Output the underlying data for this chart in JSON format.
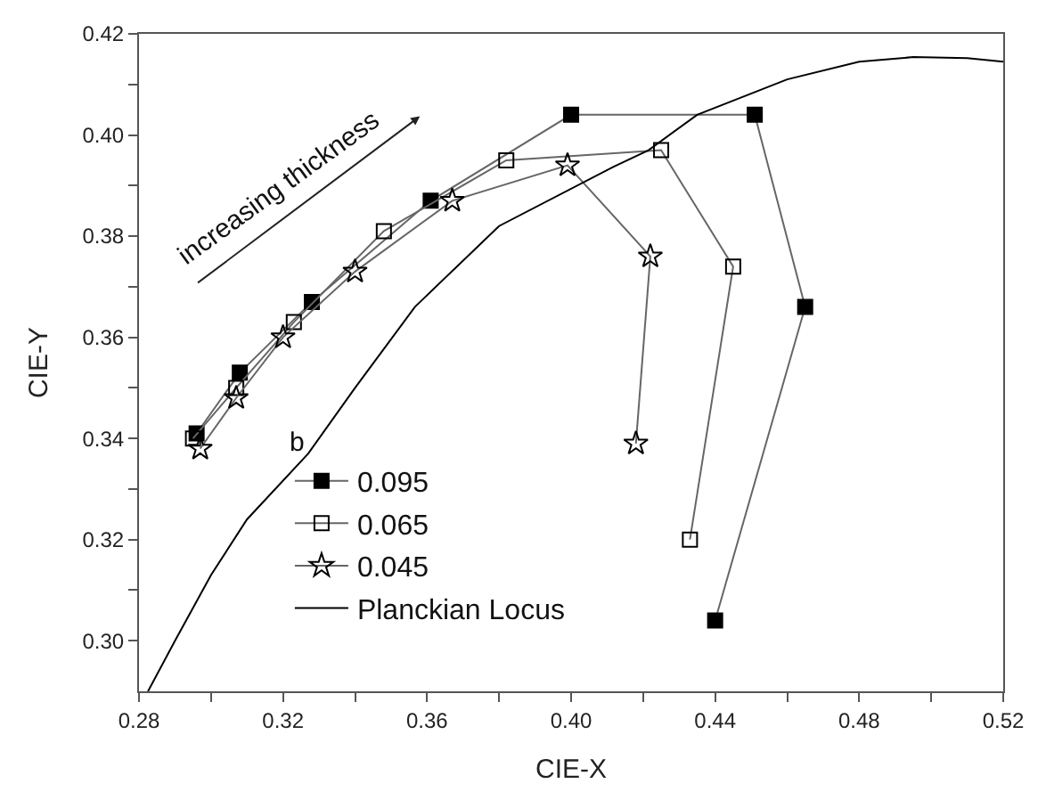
{
  "chart_data": {
    "type": "line",
    "xlabel": "CIE-X",
    "ylabel": "CIE-Y",
    "legend_title": "b",
    "legend": "bottom left",
    "xlim": [
      0.28,
      0.52
    ],
    "ylim": [
      0.29,
      0.42
    ],
    "xticks": [
      0.28,
      {
        "value": 0.3,
        "label": null
      },
      0.32,
      {
        "value": 0.34,
        "label": null
      },
      0.36,
      {
        "value": 0.38,
        "label": null
      },
      {
        "value": 0.4,
        "label": "0.40"
      },
      {
        "value": 0.42,
        "label": null
      },
      0.44,
      {
        "value": 0.46,
        "label": null
      },
      0.48,
      {
        "value": 0.5,
        "label": null
      },
      0.52
    ],
    "yticks": [
      {
        "value": 0.3,
        "label": "0.30"
      },
      {
        "value": 0.31,
        "label": null
      },
      0.32,
      {
        "value": 0.33,
        "label": null
      },
      0.34,
      {
        "value": 0.35,
        "label": null
      },
      0.36,
      {
        "value": 0.37,
        "label": null
      },
      0.38,
      {
        "value": 0.39,
        "label": null
      },
      {
        "value": 0.4,
        "label": "0.40"
      },
      {
        "value": 0.41,
        "label": null
      },
      0.42
    ],
    "series": [
      {
        "name": "0.095",
        "color": "#000000",
        "marker": "square",
        "x": [
          0.296,
          0.308,
          0.328,
          0.361,
          0.4,
          0.451,
          0.465,
          0.44
        ],
        "values": [
          0.341,
          0.353,
          0.367,
          0.387,
          0.404,
          0.404,
          0.366,
          0.304
        ]
      },
      {
        "name": "0.065",
        "color": "#000000",
        "marker": "square",
        "x": [
          0.295,
          0.307,
          0.323,
          0.348,
          0.382,
          0.425,
          0.445,
          0.433
        ],
        "values": [
          0.34,
          0.35,
          0.363,
          0.381,
          0.395,
          0.397,
          0.374,
          0.32
        ]
      },
      {
        "name": "0.045",
        "color": "#000000",
        "marker": "star",
        "x": [
          0.297,
          0.307,
          0.32,
          0.34,
          0.367,
          0.399,
          0.422,
          0.418
        ],
        "values": [
          0.338,
          0.348,
          0.36,
          0.373,
          0.387,
          0.394,
          0.376,
          0.339
        ]
      },
      {
        "name": "Planckian Locus",
        "color": "#000000",
        "marker": "none",
        "x": [
          0.2825,
          0.29,
          0.3,
          0.31,
          0.327,
          0.34,
          0.3566,
          0.38,
          0.4117,
          0.4215,
          0.435,
          0.46,
          0.48,
          0.495,
          0.51,
          0.52
        ],
        "values": [
          0.29,
          0.3,
          0.313,
          0.324,
          0.337,
          0.35,
          0.366,
          0.382,
          0.3937,
          0.397,
          0.404,
          0.411,
          0.4145,
          0.4154,
          0.4152,
          0.4145
        ]
      }
    ],
    "annotations": [
      "increasing thickness"
    ]
  }
}
